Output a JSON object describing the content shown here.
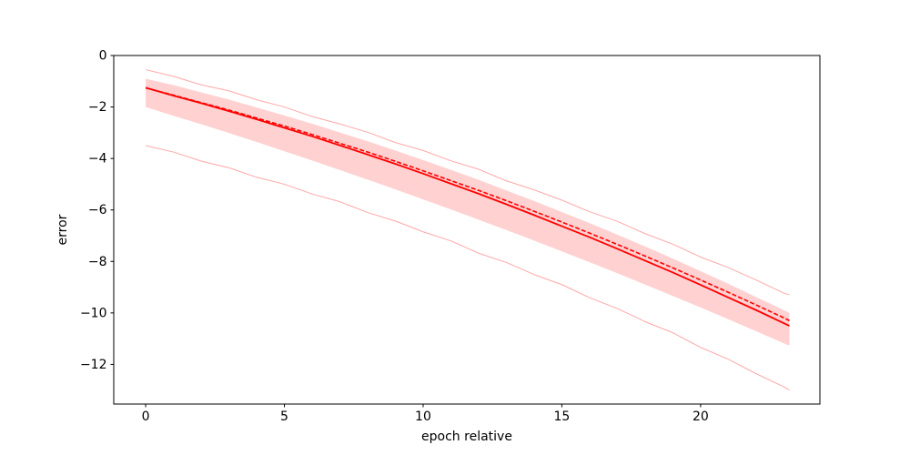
{
  "figure": {
    "background": "#ffffff"
  },
  "chart_data": {
    "type": "line",
    "title": "",
    "xlabel": "epoch relative",
    "ylabel": "error",
    "xlim": [
      -1.15,
      24.3
    ],
    "ylim": [
      -13.54,
      0
    ],
    "grid": false,
    "legend": null,
    "accent_color": "#ff0000",
    "xticks": {
      "values": [
        0,
        5,
        10,
        15,
        20
      ],
      "labels": [
        "0",
        "5",
        "10",
        "15",
        "20"
      ]
    },
    "yticks": {
      "values": [
        0,
        -2,
        -4,
        -6,
        -8,
        -10,
        -12
      ],
      "labels": [
        "0",
        "−2",
        "−4",
        "−6",
        "−8",
        "−10",
        "−12"
      ]
    },
    "x": [
      0,
      1,
      2,
      3,
      4,
      5,
      6,
      7,
      8,
      9,
      10,
      11,
      12,
      13,
      14,
      15,
      16,
      17,
      18,
      19,
      20,
      21,
      22,
      23,
      23.2
    ],
    "series": [
      {
        "name": "solid-center-line",
        "style": "solid",
        "line_width": 1.8,
        "alpha": 1.0,
        "color": "#ff0000",
        "values": [
          -1.25,
          -1.56,
          -1.85,
          -2.16,
          -2.48,
          -2.81,
          -3.14,
          -3.49,
          -3.85,
          -4.21,
          -4.59,
          -4.98,
          -5.37,
          -5.78,
          -6.2,
          -6.63,
          -7.06,
          -7.51,
          -7.97,
          -8.43,
          -8.91,
          -9.4,
          -9.89,
          -10.4,
          -10.5
        ]
      },
      {
        "name": "dashed-center-line",
        "style": "dashed",
        "line_width": 1.6,
        "alpha": 1.0,
        "color": "#ff0000",
        "values": [
          -1.26,
          -1.54,
          -1.83,
          -2.12,
          -2.43,
          -2.74,
          -3.07,
          -3.41,
          -3.75,
          -4.11,
          -4.48,
          -4.86,
          -5.24,
          -5.64,
          -6.05,
          -6.47,
          -6.9,
          -7.34,
          -7.79,
          -8.25,
          -8.72,
          -9.2,
          -9.69,
          -10.19,
          -10.3
        ]
      },
      {
        "name": "upper-envelope-line",
        "style": "solid",
        "line_width": 1.0,
        "alpha": 0.35,
        "color": "#ff0000",
        "values": [
          -0.55,
          -0.81,
          -1.14,
          -1.37,
          -1.72,
          -2.0,
          -2.37,
          -2.66,
          -2.98,
          -3.38,
          -3.69,
          -4.09,
          -4.42,
          -4.87,
          -5.22,
          -5.62,
          -6.07,
          -6.44,
          -6.92,
          -7.33,
          -7.83,
          -8.24,
          -8.72,
          -9.23,
          -9.3
        ]
      },
      {
        "name": "lower-envelope-line",
        "style": "solid",
        "line_width": 1.0,
        "alpha": 0.35,
        "color": "#ff0000",
        "values": [
          -3.5,
          -3.75,
          -4.1,
          -4.36,
          -4.73,
          -5.0,
          -5.38,
          -5.68,
          -6.1,
          -6.43,
          -6.85,
          -7.2,
          -7.68,
          -8.04,
          -8.51,
          -8.9,
          -9.41,
          -9.83,
          -10.34,
          -10.77,
          -11.34,
          -11.8,
          -12.36,
          -12.87,
          -13.0
        ]
      }
    ],
    "band": {
      "name": "shaded-band",
      "color": "#ff0000",
      "alpha": 0.18,
      "upper": [
        -0.9,
        -1.15,
        -1.43,
        -1.71,
        -2.02,
        -2.33,
        -2.65,
        -2.99,
        -3.33,
        -3.69,
        -4.06,
        -4.44,
        -4.83,
        -5.24,
        -5.65,
        -6.08,
        -6.51,
        -6.96,
        -7.42,
        -7.89,
        -8.38,
        -8.87,
        -9.38,
        -9.89,
        -10.0
      ],
      "lower": [
        -2.0,
        -2.34,
        -2.67,
        -3.01,
        -3.36,
        -3.72,
        -4.08,
        -4.45,
        -4.82,
        -5.2,
        -5.59,
        -5.98,
        -6.38,
        -6.78,
        -7.19,
        -7.61,
        -8.03,
        -8.46,
        -8.9,
        -9.34,
        -9.79,
        -10.25,
        -10.71,
        -11.18,
        -11.27
      ]
    }
  }
}
